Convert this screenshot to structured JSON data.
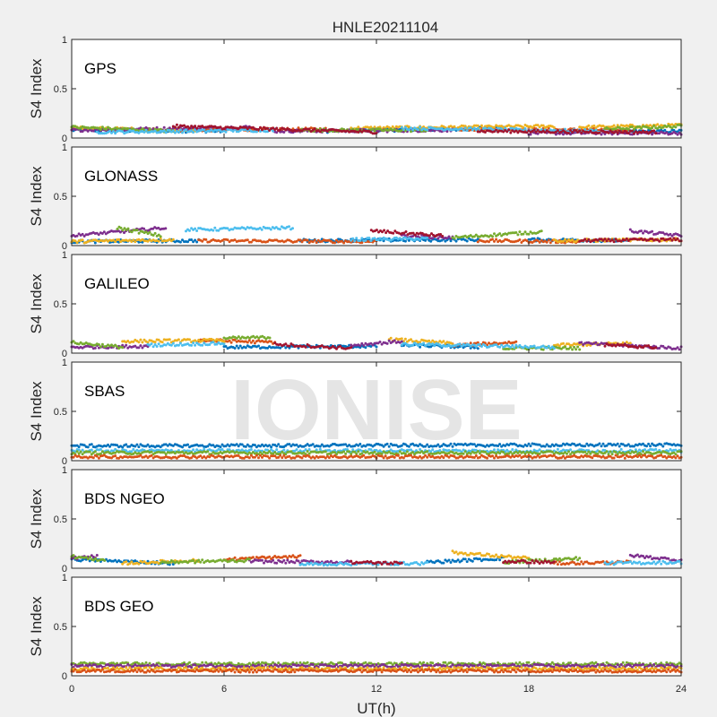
{
  "chart_data": {
    "type": "scatter",
    "title": "HNLE20211104",
    "xlabel": "UT(h)",
    "ylabel": "S4 Index",
    "xlim": [
      0,
      24
    ],
    "ylim": [
      0,
      1
    ],
    "xticks": [
      "0",
      "6",
      "12",
      "18",
      "24"
    ],
    "yticks": [
      "0",
      "0.5",
      "1"
    ],
    "grid": false,
    "watermark": "IONISE",
    "colors": {
      "blue": "#0072bd",
      "orange": "#d95319",
      "yellow": "#edb120",
      "purple": "#7e2f8e",
      "green": "#77ac30",
      "cyan": "#4dbeee",
      "red": "#a2142f"
    },
    "panels": [
      {
        "label": "GPS",
        "series": [
          {
            "color": "#0072bd",
            "tracks": [
              {
                "x": [
                  0,
                  6
                ],
                "y": [
                  0.08,
                  0.07
                ]
              },
              {
                "x": [
                  10,
                  17
                ],
                "y": [
                  0.07,
                  0.1
                ]
              },
              {
                "x": [
                  19,
                  24
                ],
                "y": [
                  0.06,
                  0.07
                ]
              }
            ]
          },
          {
            "color": "#d95319",
            "tracks": [
              {
                "x": [
                  3,
                  10
                ],
                "y": [
                  0.08,
                  0.09
                ]
              },
              {
                "x": [
                  15,
                  22
                ],
                "y": [
                  0.09,
                  0.08
                ]
              }
            ]
          },
          {
            "color": "#edb120",
            "tracks": [
              {
                "x": [
                  0,
                  5
                ],
                "y": [
                  0.1,
                  0.08
                ]
              },
              {
                "x": [
                  11,
                  19
                ],
                "y": [
                  0.1,
                  0.12
                ]
              },
              {
                "x": [
                  20,
                  24
                ],
                "y": [
                  0.11,
                  0.13
                ]
              }
            ]
          },
          {
            "color": "#7e2f8e",
            "tracks": [
              {
                "x": [
                  0,
                  7
                ],
                "y": [
                  0.08,
                  0.11
                ]
              },
              {
                "x": [
                  8,
                  15
                ],
                "y": [
                  0.07,
                  0.08
                ]
              },
              {
                "x": [
                  18,
                  24
                ],
                "y": [
                  0.05,
                  0.05
                ]
              }
            ]
          },
          {
            "color": "#77ac30",
            "tracks": [
              {
                "x": [
                  0,
                  4
                ],
                "y": [
                  0.11,
                  0.07
                ]
              },
              {
                "x": [
                  9,
                  14
                ],
                "y": [
                  0.08,
                  0.08
                ]
              },
              {
                "x": [
                  21,
                  24
                ],
                "y": [
                  0.09,
                  0.12
                ]
              }
            ]
          },
          {
            "color": "#4dbeee",
            "tracks": [
              {
                "x": [
                  1,
                  8
                ],
                "y": [
                  0.06,
                  0.08
                ]
              },
              {
                "x": [
                  13,
                  21
                ],
                "y": [
                  0.1,
                  0.07
                ]
              }
            ]
          },
          {
            "color": "#a2142f",
            "tracks": [
              {
                "x": [
                  4,
                  12
                ],
                "y": [
                  0.12,
                  0.06
                ]
              },
              {
                "x": [
                  16,
                  23
                ],
                "y": [
                  0.07,
                  0.06
                ]
              }
            ]
          }
        ]
      },
      {
        "label": "GLONASS",
        "series": [
          {
            "color": "#0072bd",
            "tracks": [
              {
                "x": [
                  0,
                  5
                ],
                "y": [
                  0.04,
                  0.05
                ]
              },
              {
                "x": [
                  9,
                  16
                ],
                "y": [
                  0.05,
                  0.06
                ]
              },
              {
                "x": [
                  18,
                  22
                ],
                "y": [
                  0.06,
                  0.05
                ]
              }
            ]
          },
          {
            "color": "#d95319",
            "tracks": [
              {
                "x": [
                  5,
                  12
                ],
                "y": [
                  0.05,
                  0.04
                ]
              },
              {
                "x": [
                  16,
                  20
                ],
                "y": [
                  0.05,
                  0.04
                ]
              }
            ]
          },
          {
            "color": "#edb120",
            "tracks": [
              {
                "x": [
                  0,
                  4
                ],
                "y": [
                  0.04,
                  0.06
                ]
              },
              {
                "x": [
                  19,
                  24
                ],
                "y": [
                  0.05,
                  0.06
                ]
              }
            ]
          },
          {
            "color": "#7e2f8e",
            "tracks": [
              {
                "x": [
                  0,
                  3.7
                ],
                "y": [
                  0.1,
                  0.18
                ]
              },
              {
                "x": [
                  13,
                  15
                ],
                "y": [
                  0.1,
                  0.08
                ]
              },
              {
                "x": [
                  22,
                  24
                ],
                "y": [
                  0.15,
                  0.1
                ]
              }
            ]
          },
          {
            "color": "#77ac30",
            "tracks": [
              {
                "x": [
                  1.8,
                  3.5
                ],
                "y": [
                  0.18,
                  0.1
                ]
              },
              {
                "x": [
                  15,
                  18.5
                ],
                "y": [
                  0.08,
                  0.14
                ]
              }
            ]
          },
          {
            "color": "#4dbeee",
            "tracks": [
              {
                "x": [
                  4.5,
                  8.7
                ],
                "y": [
                  0.16,
                  0.18
                ]
              },
              {
                "x": [
                  11,
                  14
                ],
                "y": [
                  0.06,
                  0.07
                ]
              }
            ]
          },
          {
            "color": "#a2142f",
            "tracks": [
              {
                "x": [
                  11.8,
                  14.6
                ],
                "y": [
                  0.15,
                  0.1
                ]
              },
              {
                "x": [
                  20,
                  24
                ],
                "y": [
                  0.05,
                  0.06
                ]
              }
            ]
          }
        ]
      },
      {
        "label": "GALILEO",
        "series": [
          {
            "color": "#0072bd",
            "tracks": [
              {
                "x": [
                  6,
                  12
                ],
                "y": [
                  0.06,
                  0.07
                ]
              },
              {
                "x": [
                  13,
                  16
                ],
                "y": [
                  0.08,
                  0.06
                ]
              }
            ]
          },
          {
            "color": "#d95319",
            "tracks": [
              {
                "x": [
                  5,
                  8
                ],
                "y": [
                  0.13,
                  0.11
                ]
              },
              {
                "x": [
                  15,
                  17.5
                ],
                "y": [
                  0.08,
                  0.11
                ]
              }
            ]
          },
          {
            "color": "#edb120",
            "tracks": [
              {
                "x": [
                  2,
                  6
                ],
                "y": [
                  0.12,
                  0.13
                ]
              },
              {
                "x": [
                  12.5,
                  15
                ],
                "y": [
                  0.14,
                  0.1
                ]
              },
              {
                "x": [
                  19,
                  22
                ],
                "y": [
                  0.08,
                  0.1
                ]
              }
            ]
          },
          {
            "color": "#7e2f8e",
            "tracks": [
              {
                "x": [
                  0,
                  3
                ],
                "y": [
                  0.06,
                  0.07
                ]
              },
              {
                "x": [
                  11,
                  13
                ],
                "y": [
                  0.08,
                  0.12
                ]
              },
              {
                "x": [
                  20,
                  24
                ],
                "y": [
                  0.1,
                  0.05
                ]
              }
            ]
          },
          {
            "color": "#77ac30",
            "tracks": [
              {
                "x": [
                  0,
                  2
                ],
                "y": [
                  0.11,
                  0.06
                ]
              },
              {
                "x": [
                  6,
                  7.8
                ],
                "y": [
                  0.15,
                  0.16
                ]
              },
              {
                "x": [
                  17,
                  20
                ],
                "y": [
                  0.05,
                  0.05
                ]
              }
            ]
          },
          {
            "color": "#4dbeee",
            "tracks": [
              {
                "x": [
                  3,
                  6
                ],
                "y": [
                  0.08,
                  0.1
                ]
              },
              {
                "x": [
                  13,
                  19
                ],
                "y": [
                  0.09,
                  0.06
                ]
              }
            ]
          },
          {
            "color": "#a2142f",
            "tracks": [
              {
                "x": [
                  8,
                  11
                ],
                "y": [
                  0.09,
                  0.05
                ]
              },
              {
                "x": [
                  21,
                  23
                ],
                "y": [
                  0.08,
                  0.06
                ]
              }
            ]
          }
        ]
      },
      {
        "label": "SBAS",
        "series": [
          {
            "color": "#0072bd",
            "tracks": [
              {
                "x": [
                  0,
                  24
                ],
                "y": [
                  0.15,
                  0.16
                ]
              }
            ]
          },
          {
            "color": "#4dbeee",
            "tracks": [
              {
                "x": [
                  0,
                  24
                ],
                "y": [
                  0.1,
                  0.1
                ]
              }
            ]
          },
          {
            "color": "#77ac30",
            "tracks": [
              {
                "x": [
                  0,
                  24
                ],
                "y": [
                  0.08,
                  0.08
                ]
              }
            ]
          },
          {
            "color": "#d95319",
            "tracks": [
              {
                "x": [
                  0,
                  24
                ],
                "y": [
                  0.04,
                  0.04
                ]
              }
            ]
          }
        ]
      },
      {
        "label": "BDS NGEO",
        "series": [
          {
            "color": "#0072bd",
            "tracks": [
              {
                "x": [
                  0,
                  4
                ],
                "y": [
                  0.09,
                  0.05
                ]
              },
              {
                "x": [
                  14,
                  17
                ],
                "y": [
                  0.06,
                  0.1
                ]
              }
            ]
          },
          {
            "color": "#d95319",
            "tracks": [
              {
                "x": [
                  6,
                  9
                ],
                "y": [
                  0.09,
                  0.12
                ]
              },
              {
                "x": [
                  19,
                  22
                ],
                "y": [
                  0.05,
                  0.06
                ]
              }
            ]
          },
          {
            "color": "#edb120",
            "tracks": [
              {
                "x": [
                  2,
                  5
                ],
                "y": [
                  0.05,
                  0.08
                ]
              },
              {
                "x": [
                  15,
                  18
                ],
                "y": [
                  0.16,
                  0.1
                ]
              }
            ]
          },
          {
            "color": "#7e2f8e",
            "tracks": [
              {
                "x": [
                  0,
                  1
                ],
                "y": [
                  0.1,
                  0.12
                ]
              },
              {
                "x": [
                  7,
                  11
                ],
                "y": [
                  0.07,
                  0.06
                ]
              },
              {
                "x": [
                  22,
                  24
                ],
                "y": [
                  0.13,
                  0.08
                ]
              }
            ]
          },
          {
            "color": "#77ac30",
            "tracks": [
              {
                "x": [
                  0,
                  1.3
                ],
                "y": [
                  0.12,
                  0.08
                ]
              },
              {
                "x": [
                  3.5,
                  7
                ],
                "y": [
                  0.06,
                  0.08
                ]
              },
              {
                "x": [
                  17,
                  20
                ],
                "y": [
                  0.06,
                  0.1
                ]
              }
            ]
          },
          {
            "color": "#4dbeee",
            "tracks": [
              {
                "x": [
                  9,
                  14
                ],
                "y": [
                  0.04,
                  0.05
                ]
              },
              {
                "x": [
                  21,
                  24
                ],
                "y": [
                  0.05,
                  0.06
                ]
              }
            ]
          },
          {
            "color": "#a2142f",
            "tracks": [
              {
                "x": [
                  11,
                  13
                ],
                "y": [
                  0.06,
                  0.05
                ]
              },
              {
                "x": [
                  17,
                  19
                ],
                "y": [
                  0.07,
                  0.06
                ]
              }
            ]
          }
        ]
      },
      {
        "label": "BDS GEO",
        "series": [
          {
            "color": "#77ac30",
            "tracks": [
              {
                "x": [
                  0,
                  24
                ],
                "y": [
                  0.12,
                  0.12
                ]
              }
            ]
          },
          {
            "color": "#7e2f8e",
            "tracks": [
              {
                "x": [
                  0,
                  24
                ],
                "y": [
                  0.1,
                  0.1
                ]
              }
            ]
          },
          {
            "color": "#edb120",
            "tracks": [
              {
                "x": [
                  0,
                  24
                ],
                "y": [
                  0.07,
                  0.07
                ]
              }
            ]
          },
          {
            "color": "#d95319",
            "tracks": [
              {
                "x": [
                  0,
                  24
                ],
                "y": [
                  0.05,
                  0.05
                ]
              }
            ]
          }
        ]
      }
    ]
  }
}
